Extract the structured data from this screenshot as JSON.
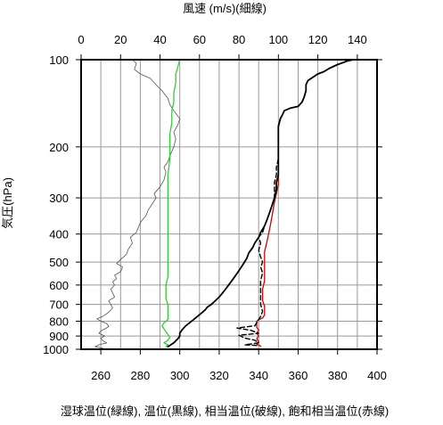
{
  "chart_data": {
    "type": "line",
    "title": "",
    "top_axis": {
      "label": "風速 (m/s)(細線)",
      "range": [
        0,
        150
      ],
      "ticks": [
        0,
        20,
        40,
        60,
        80,
        100,
        120,
        140
      ],
      "tick_labels": [
        "0",
        "20",
        "40",
        "60",
        "80",
        "100",
        "120",
        "140"
      ]
    },
    "bottom_axis": {
      "label": "湿球温位(緑線), 温位(黒線), 相当温位(破線), 飽和相当温位(赤線)",
      "range": [
        250,
        400
      ],
      "ticks": [
        260,
        280,
        300,
        320,
        340,
        360,
        380,
        400
      ],
      "tick_labels": [
        "260",
        "280",
        "300",
        "320",
        "340",
        "360",
        "380",
        "400"
      ]
    },
    "left_axis": {
      "label": "気圧(hPa)",
      "scale": "log",
      "range": [
        1000,
        100
      ],
      "ticks": [
        100,
        200,
        300,
        400,
        500,
        600,
        700,
        800,
        900,
        1000
      ],
      "tick_labels": [
        "100",
        "200",
        "300",
        "400",
        "500",
        "600",
        "700",
        "800",
        "900",
        "1000"
      ]
    },
    "grid": true,
    "series": [
      {
        "name": "風速",
        "axis": "top",
        "color": "#555555",
        "style": "thin",
        "points": [
          [
            11,
            990
          ],
          [
            7,
            980
          ],
          [
            9,
            965
          ],
          [
            13,
            950
          ],
          [
            11,
            935
          ],
          [
            10,
            915
          ],
          [
            12,
            900
          ],
          [
            9,
            880
          ],
          [
            10,
            865
          ],
          [
            12,
            850
          ],
          [
            14,
            835
          ],
          [
            13,
            815
          ],
          [
            10,
            800
          ],
          [
            8,
            785
          ],
          [
            11,
            770
          ],
          [
            14,
            745
          ],
          [
            16,
            720
          ],
          [
            15,
            700
          ],
          [
            14,
            680
          ],
          [
            17,
            660
          ],
          [
            16,
            640
          ],
          [
            15,
            620
          ],
          [
            17,
            600
          ],
          [
            16,
            585
          ],
          [
            18,
            570
          ],
          [
            17,
            555
          ],
          [
            20,
            540
          ],
          [
            21,
            520
          ],
          [
            18,
            505
          ],
          [
            20,
            490
          ],
          [
            23,
            470
          ],
          [
            24,
            450
          ],
          [
            26,
            430
          ],
          [
            25,
            410
          ],
          [
            28,
            395
          ],
          [
            29,
            380
          ],
          [
            30,
            365
          ],
          [
            33,
            345
          ],
          [
            34,
            330
          ],
          [
            36,
            315
          ],
          [
            38,
            300
          ],
          [
            37,
            290
          ],
          [
            40,
            275
          ],
          [
            42,
            260
          ],
          [
            43,
            245
          ],
          [
            42,
            235
          ],
          [
            44,
            225
          ],
          [
            45,
            215
          ],
          [
            47,
            200
          ],
          [
            48,
            188
          ],
          [
            47,
            178
          ],
          [
            49,
            168
          ],
          [
            50,
            160
          ],
          [
            47,
            150
          ],
          [
            45,
            143
          ],
          [
            44,
            136
          ],
          [
            41,
            128
          ],
          [
            38,
            122
          ],
          [
            35,
            116
          ],
          [
            30,
            112
          ],
          [
            27,
            108
          ],
          [
            28,
            103
          ],
          [
            26,
            100
          ]
        ]
      },
      {
        "name": "湿球温位",
        "axis": "bottom",
        "color": "#33cc33",
        "style": "solid",
        "points": [
          [
            293,
            980
          ],
          [
            294,
            965
          ],
          [
            292,
            950
          ],
          [
            294,
            930
          ],
          [
            295,
            910
          ],
          [
            294,
            890
          ],
          [
            293,
            870
          ],
          [
            292,
            850
          ],
          [
            291,
            830
          ],
          [
            292,
            810
          ],
          [
            294,
            790
          ],
          [
            294,
            760
          ],
          [
            294,
            730
          ],
          [
            294,
            700
          ],
          [
            293,
            670
          ],
          [
            293,
            640
          ],
          [
            293,
            600
          ],
          [
            294,
            560
          ],
          [
            294,
            520
          ],
          [
            294,
            480
          ],
          [
            294,
            440
          ],
          [
            294,
            400
          ],
          [
            294,
            360
          ],
          [
            294,
            320
          ],
          [
            294,
            280
          ],
          [
            294,
            250
          ],
          [
            295,
            220
          ],
          [
            295,
            200
          ],
          [
            295,
            180
          ],
          [
            296,
            165
          ],
          [
            296,
            150
          ],
          [
            297,
            140
          ],
          [
            297,
            130
          ],
          [
            298,
            120
          ],
          [
            298,
            112
          ],
          [
            299,
            106
          ],
          [
            300,
            100
          ]
        ]
      },
      {
        "name": "温位",
        "axis": "bottom",
        "color": "#000000",
        "style": "solid",
        "points": [
          [
            294,
            980
          ],
          [
            297,
            950
          ],
          [
            299,
            920
          ],
          [
            300,
            900
          ],
          [
            300,
            880
          ],
          [
            301,
            860
          ],
          [
            302,
            845
          ],
          [
            303,
            830
          ],
          [
            305,
            810
          ],
          [
            307,
            790
          ],
          [
            309,
            770
          ],
          [
            311,
            750
          ],
          [
            313,
            730
          ],
          [
            314,
            715
          ],
          [
            316,
            700
          ],
          [
            318,
            680
          ],
          [
            320,
            660
          ],
          [
            322,
            635
          ],
          [
            324,
            610
          ],
          [
            326,
            585
          ],
          [
            328,
            560
          ],
          [
            330,
            535
          ],
          [
            332,
            510
          ],
          [
            334,
            485
          ],
          [
            335,
            465
          ],
          [
            337,
            445
          ],
          [
            338,
            430
          ],
          [
            340,
            410
          ],
          [
            341,
            395
          ],
          [
            343,
            375
          ],
          [
            344,
            360
          ],
          [
            345,
            345
          ],
          [
            346,
            330
          ],
          [
            347,
            315
          ],
          [
            348,
            300
          ],
          [
            349,
            280
          ],
          [
            349,
            265
          ],
          [
            350,
            250
          ],
          [
            350,
            235
          ],
          [
            350,
            220
          ],
          [
            350,
            205
          ],
          [
            350,
            190
          ],
          [
            350,
            180
          ],
          [
            350,
            170
          ],
          [
            351,
            160
          ],
          [
            352,
            155
          ],
          [
            353,
            150
          ],
          [
            356,
            147
          ],
          [
            360,
            145
          ],
          [
            362,
            140
          ],
          [
            363,
            135
          ],
          [
            364,
            128
          ],
          [
            364,
            122
          ],
          [
            365,
            118
          ],
          [
            370,
            112
          ],
          [
            373,
            110
          ],
          [
            376,
            107
          ],
          [
            380,
            104
          ],
          [
            385,
            101
          ],
          [
            388,
            100
          ]
        ]
      },
      {
        "name": "相当温位",
        "axis": "bottom",
        "color": "#000000",
        "style": "dashed",
        "points": [
          [
            339,
            970
          ],
          [
            333,
            965
          ],
          [
            340,
            950
          ],
          [
            338,
            930
          ],
          [
            333,
            915
          ],
          [
            330,
            895
          ],
          [
            340,
            880
          ],
          [
            336,
            860
          ],
          [
            329,
            845
          ],
          [
            338,
            830
          ],
          [
            339,
            810
          ],
          [
            340,
            790
          ],
          [
            341,
            770
          ],
          [
            342,
            740
          ],
          [
            341,
            700
          ],
          [
            341,
            660
          ],
          [
            341,
            620
          ],
          [
            341,
            580
          ],
          [
            342,
            545
          ],
          [
            341,
            520
          ],
          [
            342,
            500
          ],
          [
            341,
            480
          ],
          [
            340,
            455
          ],
          [
            341,
            430
          ],
          [
            340,
            410
          ],
          [
            342,
            395
          ],
          [
            343,
            375
          ],
          [
            344,
            360
          ],
          [
            345,
            345
          ],
          [
            346,
            330
          ],
          [
            347,
            315
          ],
          [
            348,
            300
          ],
          [
            348,
            280
          ],
          [
            348,
            265
          ],
          [
            349,
            250
          ],
          [
            349,
            235
          ],
          [
            350,
            220
          ],
          [
            350,
            205
          ],
          [
            350,
            190
          ],
          [
            350,
            180
          ],
          [
            350,
            170
          ],
          [
            351,
            160
          ],
          [
            352,
            155
          ],
          [
            353,
            150
          ],
          [
            356,
            147
          ],
          [
            360,
            145
          ],
          [
            362,
            140
          ],
          [
            363,
            135
          ],
          [
            364,
            128
          ],
          [
            364,
            122
          ],
          [
            365,
            118
          ],
          [
            370,
            112
          ],
          [
            373,
            110
          ],
          [
            376,
            107
          ],
          [
            380,
            104
          ],
          [
            385,
            101
          ],
          [
            388,
            100
          ]
        ]
      },
      {
        "name": "飽和相当温位",
        "axis": "bottom",
        "color": "#cc0000",
        "style": "solid",
        "points": [
          [
            341,
            975
          ],
          [
            339,
            960
          ],
          [
            340,
            940
          ],
          [
            339,
            920
          ],
          [
            340,
            900
          ],
          [
            339,
            880
          ],
          [
            340,
            860
          ],
          [
            339,
            840
          ],
          [
            339,
            820
          ],
          [
            339,
            800
          ],
          [
            340,
            790
          ],
          [
            342,
            780
          ],
          [
            343,
            760
          ],
          [
            343,
            740
          ],
          [
            343,
            710
          ],
          [
            342,
            680
          ],
          [
            342,
            650
          ],
          [
            342,
            620
          ],
          [
            343,
            580
          ],
          [
            343,
            550
          ],
          [
            343,
            520
          ],
          [
            343,
            490
          ],
          [
            343,
            460
          ],
          [
            344,
            430
          ],
          [
            345,
            400
          ],
          [
            346,
            370
          ],
          [
            347,
            340
          ],
          [
            348,
            310
          ],
          [
            349,
            290
          ],
          [
            350,
            270
          ],
          [
            350,
            250
          ],
          [
            350,
            230
          ],
          [
            350,
            210
          ],
          [
            350,
            195
          ],
          [
            350,
            180
          ],
          [
            350,
            170
          ],
          [
            351,
            160
          ],
          [
            352,
            155
          ],
          [
            353,
            150
          ],
          [
            356,
            147
          ],
          [
            360,
            145
          ],
          [
            362,
            140
          ],
          [
            363,
            135
          ],
          [
            364,
            128
          ],
          [
            364,
            122
          ],
          [
            365,
            118
          ],
          [
            370,
            112
          ],
          [
            373,
            110
          ],
          [
            376,
            107
          ],
          [
            380,
            104
          ],
          [
            385,
            101
          ],
          [
            388,
            100
          ]
        ]
      }
    ]
  }
}
